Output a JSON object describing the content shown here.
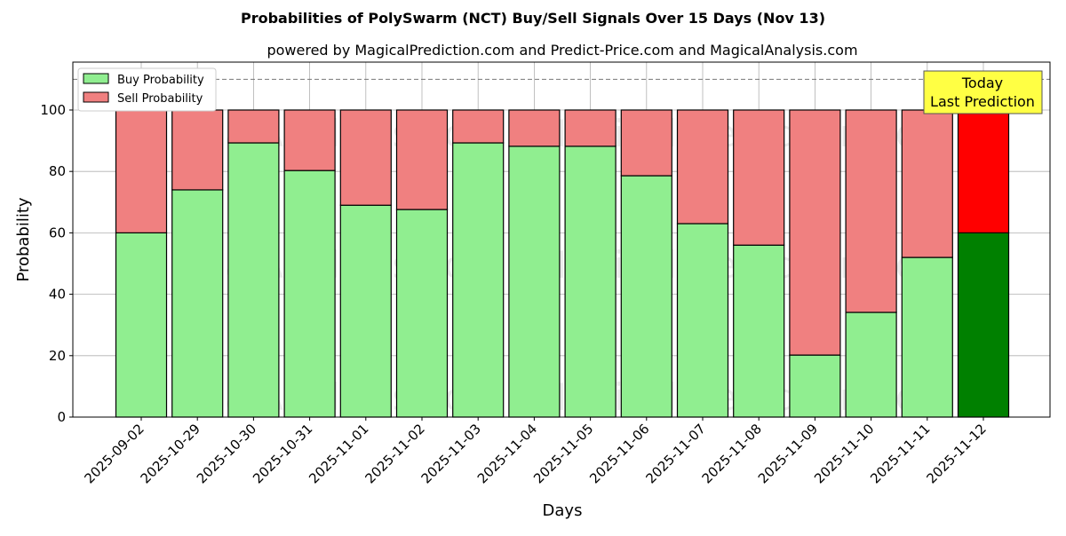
{
  "chart_data": {
    "type": "bar",
    "stacked": true,
    "title": "Probabilities of PolySwarm (NCT) Buy/Sell Signals Over 15 Days (Nov 13)",
    "subtitle": "powered by MagicalPrediction.com and Predict-Price.com and MagicalAnalysis.com",
    "xlabel": "Days",
    "ylabel": "Probability",
    "ylim": [
      0,
      115.6
    ],
    "yticks": [
      0,
      20,
      40,
      60,
      80,
      100
    ],
    "grid": true,
    "legend_position": "top-left",
    "reference_line": 110,
    "categories": [
      "2025-09-02",
      "2025-10-29",
      "2025-10-30",
      "2025-10-31",
      "2025-11-01",
      "2025-11-02",
      "2025-11-03",
      "2025-11-04",
      "2025-11-05",
      "2025-11-06",
      "2025-11-07",
      "2025-11-08",
      "2025-11-09",
      "2025-11-10",
      "2025-11-11",
      "2025-11-12"
    ],
    "series": [
      {
        "name": "Buy Probability",
        "color": "#90EE90",
        "values": [
          60,
          74,
          89.3,
          80.3,
          69,
          67.6,
          89.3,
          88.2,
          88.2,
          78.6,
          63,
          56,
          20.2,
          34.1,
          52,
          60
        ]
      },
      {
        "name": "Sell Probability",
        "color": "#F08080",
        "values": [
          40,
          26,
          10.7,
          19.7,
          31,
          32.4,
          10.7,
          11.8,
          11.8,
          21.4,
          37,
          44,
          79.8,
          65.9,
          48,
          40
        ]
      }
    ],
    "highlight": {
      "index": 15,
      "buy_color": "#008000",
      "sell_color": "#FF0000"
    },
    "annotation": {
      "line1": "Today",
      "line2": "Last Prediction"
    },
    "watermarks": [
      "MagicalAnalysis.com",
      "MagicalPrediction.com"
    ]
  }
}
